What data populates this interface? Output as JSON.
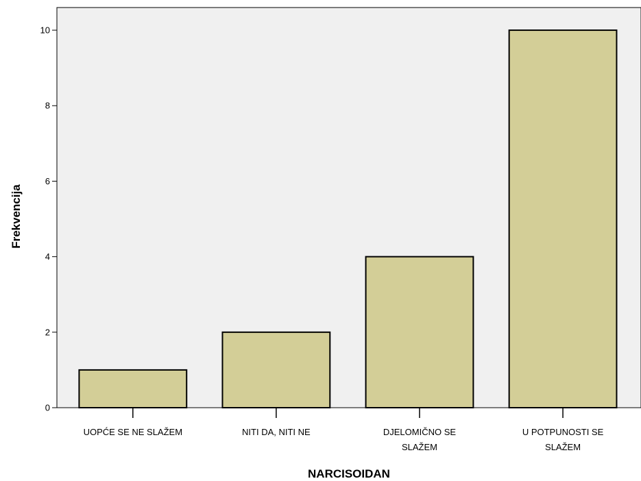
{
  "chart_data": {
    "type": "bar",
    "categories": [
      [
        "UOPĆE SE NE SLAŽEM"
      ],
      [
        "NITI DA, NITI NE"
      ],
      [
        "DJELOMIČNO SE",
        "SLAŽEM"
      ],
      [
        "U POTPUNOSTI SE",
        "SLAŽEM"
      ]
    ],
    "values": [
      1,
      2,
      4,
      10
    ],
    "xlabel": "NARCISOIDAN",
    "ylabel": "Frekvencija",
    "ylim": [
      0,
      10.6
    ],
    "yticks": [
      0,
      2,
      4,
      6,
      8,
      10
    ],
    "grid": false,
    "legend": "none",
    "colors": {
      "plot_background": "#f0f0f0",
      "bar_fill": "#d3ce97",
      "bar_stroke": "#000000"
    }
  }
}
